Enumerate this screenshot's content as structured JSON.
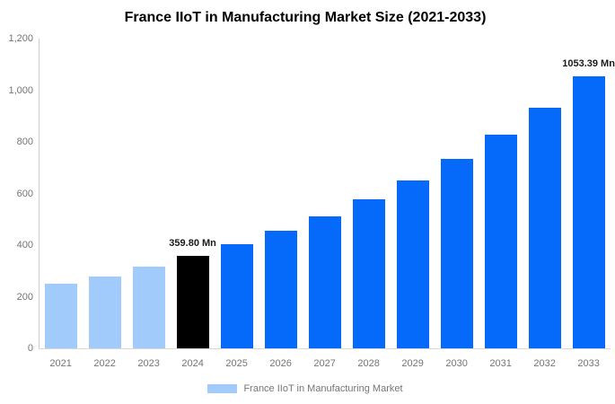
{
  "title": "France IIoT in Manufacturing Market Size (2021-2033)",
  "legend": {
    "label": "France IIoT in Manufacturing Market",
    "swatch_color": "#a0cbfa"
  },
  "colors": {
    "historical_bar": "#a0cbfa",
    "base_year_bar": "#000000",
    "forecast_bar": "#0569fa",
    "axis_line": "#cccccc",
    "tick_text": "#757575",
    "annotation_text": "#1a1a1a",
    "title_text": "#000000",
    "background": "#ffffff"
  },
  "chart_data": {
    "type": "bar",
    "title": "France IIoT in Manufacturing Market Size (2021-2033)",
    "categories": [
      "2021",
      "2022",
      "2023",
      "2024",
      "2025",
      "2026",
      "2027",
      "2028",
      "2029",
      "2030",
      "2031",
      "2032",
      "2033"
    ],
    "series": [
      {
        "name": "France IIoT in Manufacturing Market",
        "values": [
          250,
          280,
          317,
          359.8,
          405,
          456,
          513,
          578,
          651,
          734,
          828,
          933,
          1053.39
        ]
      }
    ],
    "bar_roles": [
      "historical",
      "historical",
      "historical",
      "base_year",
      "forecast",
      "forecast",
      "forecast",
      "forecast",
      "forecast",
      "forecast",
      "forecast",
      "forecast",
      "forecast"
    ],
    "annotations": [
      {
        "category": "2024",
        "text": "359.80 Mn"
      },
      {
        "category": "2033",
        "text": "1053.39 Mn"
      }
    ],
    "unit": "Mn",
    "xlabel": "",
    "ylabel": "",
    "ylim": [
      0,
      1200
    ],
    "yticks": [
      0,
      200,
      400,
      600,
      800,
      1000,
      1200
    ],
    "ytick_labels": [
      "0",
      "200",
      "400",
      "600",
      "800",
      "1,000",
      "1,200"
    ],
    "grid": false,
    "legend_position": "bottom"
  }
}
